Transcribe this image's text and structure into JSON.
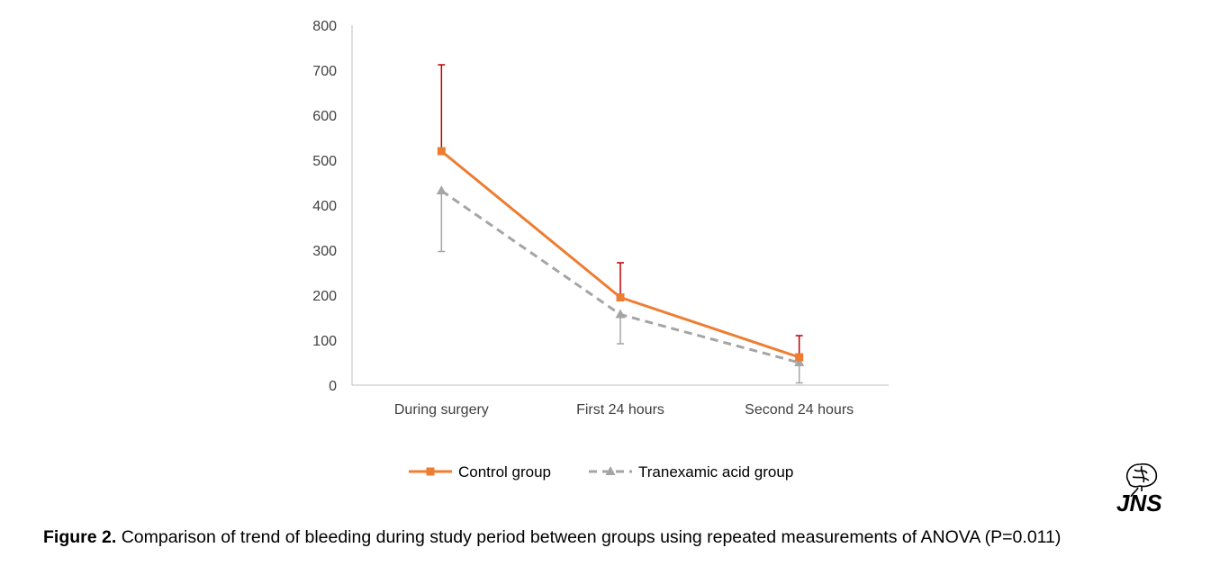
{
  "chart_data": {
    "type": "line",
    "categories": [
      "During surgery",
      "First 24 hours",
      "Second 24 hours"
    ],
    "ylim": [
      0,
      800
    ],
    "yticks": [
      0,
      100,
      200,
      300,
      400,
      500,
      600,
      700,
      800
    ],
    "grid": false,
    "legend_position": "bottom",
    "series": [
      {
        "name": "Control group",
        "values": [
          520,
          195,
          62
        ],
        "error_upper": [
          712,
          272,
          110
        ],
        "line_color": "#ED7D31",
        "error_color": "#C00000",
        "marker": "square",
        "dash": "solid"
      },
      {
        "name": "Tranexamic acid group",
        "values": [
          432,
          157,
          50
        ],
        "error_lower": [
          297,
          92,
          5
        ],
        "line_color": "#A5A5A5",
        "error_color": "#A5A5A5",
        "marker": "triangle",
        "dash": "dashed"
      }
    ]
  },
  "caption": {
    "label": "Figure 2.",
    "text": " Comparison of trend of bleeding during study period between groups using repeated measurements of ANOVA (P=0.011)"
  },
  "logo": {
    "text": "JNS"
  }
}
